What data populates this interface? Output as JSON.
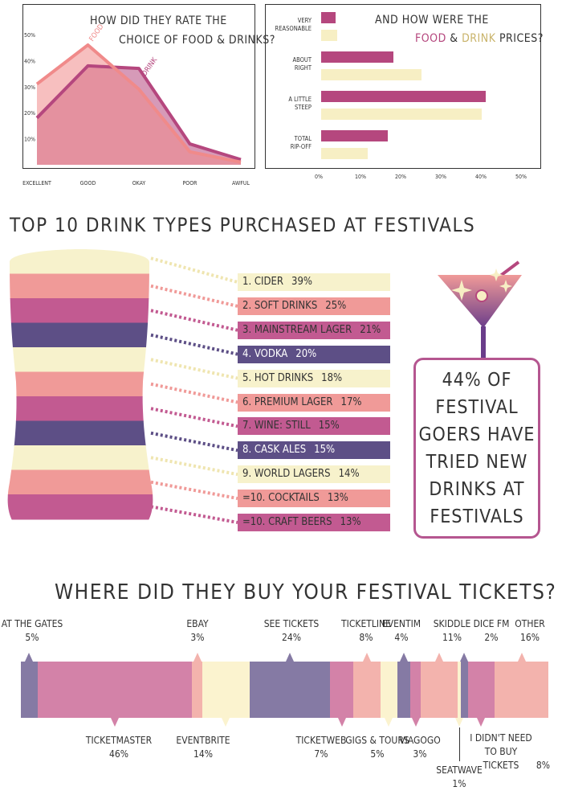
{
  "chart_data": [
    {
      "type": "area",
      "title": "HOW DID THEY RATE THE CHOICE OF FOOD & DRINKS?",
      "title_lines": [
        "HOW DID THEY RATE THE",
        "CHOICE OF  FOOD & DRINKS?"
      ],
      "categories": [
        "EXCELLENT",
        "GOOD",
        "OKAY",
        "POOR",
        "AWFUL"
      ],
      "y_ticks": [
        "50%",
        "40%",
        "30%",
        "20%",
        "10%"
      ],
      "ylim": [
        0,
        50
      ],
      "series": [
        {
          "name": "FOOD",
          "values": [
            31,
            46,
            29,
            5,
            1
          ],
          "color": "#f08a8a"
        },
        {
          "name": "DRINK",
          "values": [
            18,
            38,
            37,
            8,
            2
          ],
          "color": "#b5477e"
        }
      ]
    },
    {
      "type": "bar",
      "orientation": "horizontal",
      "title": "AND HOW WERE THE FOOD & DRINK PRICES?",
      "title_parts": [
        "AND HOW WERE THE",
        "FOOD",
        " & ",
        "DRINK",
        " PRICES?"
      ],
      "categories": [
        [
          "VERY",
          "REASONABLE"
        ],
        [
          "ABOUT",
          "RIGHT"
        ],
        [
          "A LITTLE",
          "STEEP"
        ],
        [
          "TOTAL",
          "RIP-OFF"
        ]
      ],
      "x_ticks": [
        "0%",
        "10%",
        "20%",
        "30%",
        "40%",
        "50%"
      ],
      "xlim": [
        0,
        50
      ],
      "series": [
        {
          "name": "FOOD",
          "values": [
            3.5,
            18,
            41,
            16.5
          ],
          "color": "#b5477e"
        },
        {
          "name": "DRINK",
          "values": [
            4,
            25,
            40,
            11.5
          ],
          "color": "#f7efc4"
        }
      ]
    },
    {
      "type": "bar",
      "title": "TOP 10 DRINK TYPES PURCHASED AT FESTIVALS",
      "items": [
        {
          "label": "1. CIDER",
          "value": "39%",
          "color": "#f7f2cc",
          "text": "#333"
        },
        {
          "label": "2. SOFT DRINKS",
          "value": "25%",
          "color": "#f09a98",
          "text": "#333"
        },
        {
          "label": "3. MAINSTREAM LAGER",
          "value": "21%",
          "color": "#c25a91",
          "text": "#333"
        },
        {
          "label": "4. VODKA",
          "value": "20%",
          "color": "#5d4f86",
          "text": "#ffffff"
        },
        {
          "label": "5. HOT DRINKS",
          "value": "18%",
          "color": "#f7f2cc",
          "text": "#333"
        },
        {
          "label": "6. PREMIUM LAGER",
          "value": "17%",
          "color": "#f09a98",
          "text": "#333"
        },
        {
          "label": "7. WINE: STILL",
          "value": "15%",
          "color": "#c25a91",
          "text": "#333"
        },
        {
          "label": "8. CASK ALES",
          "value": "15%",
          "color": "#5d4f86",
          "text": "#ffffff"
        },
        {
          "label": "9. WORLD LAGERS",
          "value": "14%",
          "color": "#f7f2cc",
          "text": "#333"
        },
        {
          "label": "=10. COCKTAILS",
          "value": "13%",
          "color": "#f09a98",
          "text": "#333"
        },
        {
          "label": "=10. CRAFT BEERS",
          "value": "13%",
          "color": "#c25a91",
          "text": "#333"
        }
      ],
      "callout_lines": [
        "44% OF",
        "FESTIVAL",
        "GOERS HAVE",
        "TRIED NEW",
        "DRINKS AT",
        "FESTIVALS"
      ]
    },
    {
      "type": "bar",
      "orientation": "stacked-horizontal",
      "title": "WHERE DID THEY BUY YOUR FESTIVAL TICKETS?",
      "segments": [
        {
          "label": "AT THE GATES",
          "value": "5%",
          "color": "#857aa4",
          "pos": "top"
        },
        {
          "label": "TICKETMASTER",
          "value": "46%",
          "color": "#d382a8",
          "pos": "bottom"
        },
        {
          "label": "EBAY",
          "value": "3%",
          "color": "#f3b3ad",
          "pos": "top"
        },
        {
          "label": "EVENTBRITE",
          "value": "14%",
          "color": "#fbf3cf",
          "pos": "bottom"
        },
        {
          "label": "SEE TICKETS",
          "value": "24%",
          "color": "#857aa4",
          "pos": "top"
        },
        {
          "label": "TICKETWEB",
          "value": "7%",
          "color": "#d382a8",
          "pos": "bottom"
        },
        {
          "label": "TICKETLINE",
          "value": "8%",
          "color": "#f3b3ad",
          "pos": "top"
        },
        {
          "label": "GIGS & TOURS",
          "value": "5%",
          "color": "#fbf3cf",
          "pos": "bottom"
        },
        {
          "label": "EVENTIM",
          "value": "4%",
          "color": "#857aa4",
          "pos": "top"
        },
        {
          "label": "VIAGOGO",
          "value": "3%",
          "color": "#d382a8",
          "pos": "bottom"
        },
        {
          "label": "SKIDDLE",
          "value": "11%",
          "color": "#f3b3ad",
          "pos": "top"
        },
        {
          "label": "SEATWAVE",
          "value": "1%",
          "color": "#fbf3cf",
          "pos": "bottom"
        },
        {
          "label": "DICE FM",
          "value": "2%",
          "color": "#857aa4",
          "pos": "top"
        },
        {
          "label": "I DIDN'T NEED TO BUY TICKETS",
          "value": "8%",
          "color": "#d382a8",
          "pos": "bottom"
        },
        {
          "label": "OTHER",
          "value": "16%",
          "color": "#f3b3ad",
          "pos": "top"
        }
      ]
    }
  ]
}
